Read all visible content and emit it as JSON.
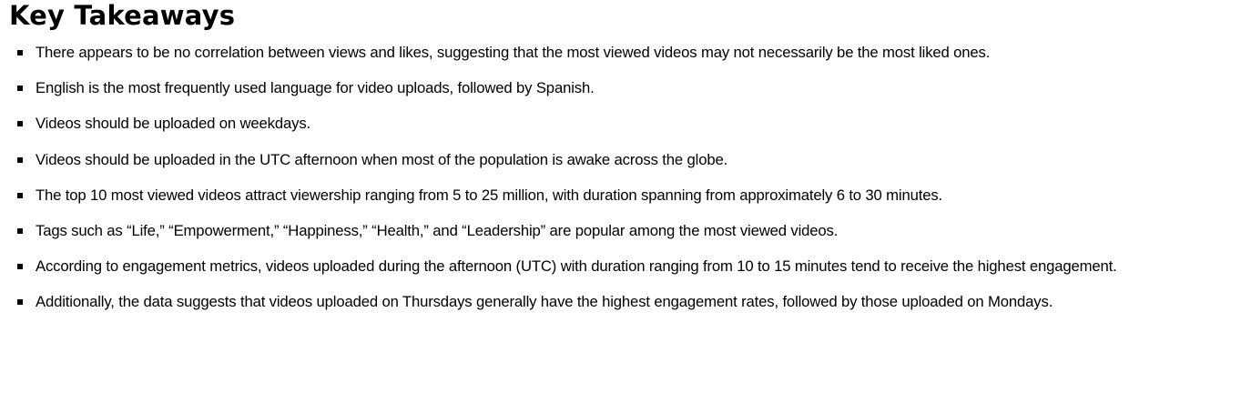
{
  "heading": "Key Takeaways",
  "takeaways": [
    "There appears to be no correlation between views and likes, suggesting that the most viewed videos may not necessarily be the most liked ones.",
    "English is the most frequently used language for video uploads, followed by Spanish.",
    "Videos should be uploaded on weekdays.",
    "Videos should be uploaded in the UTC afternoon when most of the population is awake across the globe.",
    "The top 10 most viewed videos attract viewership ranging from 5 to 25 million, with duration spanning from approximately 6 to 30 minutes.",
    "Tags such as “Life,” “Empowerment,” “Happiness,” “Health,” and “Leadership” are popular among the most viewed videos.",
    "According to engagement metrics, videos uploaded during the afternoon (UTC) with duration ranging from 10 to 15 minutes tend to receive the highest engagement.",
    "Additionally, the data suggests that videos uploaded on Thursdays generally have the highest engagement rates, followed by those uploaded on Mondays."
  ]
}
